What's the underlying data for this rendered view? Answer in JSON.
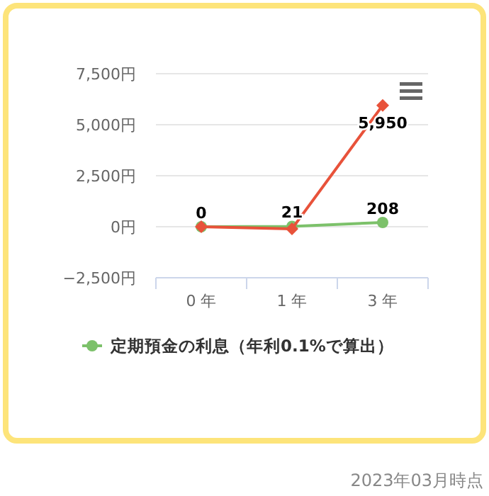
{
  "chart_data": {
    "type": "line",
    "categories": [
      "0 年",
      "1 年",
      "3 年"
    ],
    "series": [
      {
        "name": "定期預金の利息（年利0.1%で算出）",
        "color": "#7cc16a",
        "marker": "circle",
        "values": [
          0,
          21,
          208
        ],
        "value_labels": [
          "0",
          "21",
          "208"
        ]
      },
      {
        "color": "#e8523a",
        "marker": "diamond",
        "values": [
          0,
          -100,
          5950
        ],
        "value_labels": [
          null,
          null,
          "5,950"
        ]
      }
    ],
    "ylim": [
      -2500,
      7500
    ],
    "yticks": [
      {
        "value": -2500,
        "label": "−2,500円"
      },
      {
        "value": 0,
        "label": "0円"
      },
      {
        "value": 2500,
        "label": "2,500円"
      },
      {
        "value": 5000,
        "label": "5,000円"
      },
      {
        "value": 7500,
        "label": "7,500円"
      }
    ],
    "grid": "y",
    "legend": "bottom",
    "annotations": [
      "2023年03月時点"
    ]
  }
}
